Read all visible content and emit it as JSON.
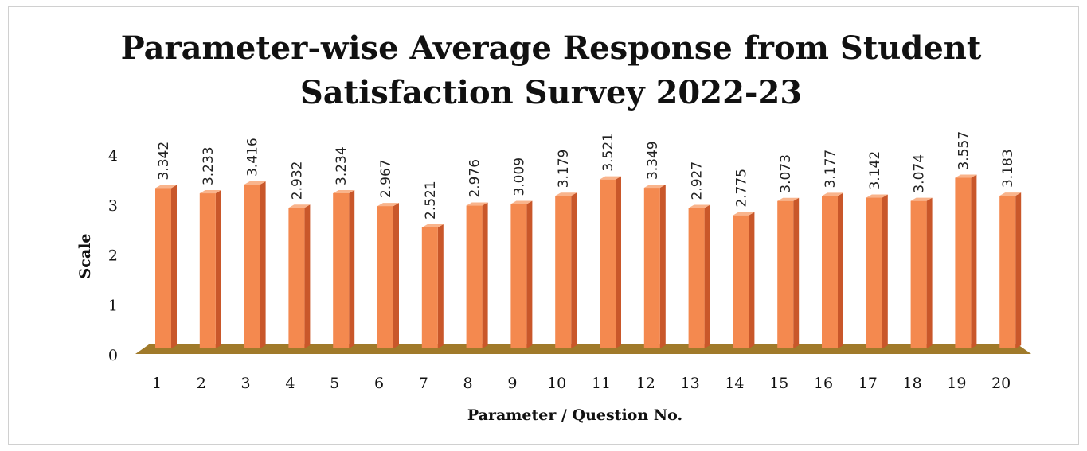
{
  "chart_data": {
    "type": "bar",
    "title_lines": [
      "Parameter-wise Average Response from Student",
      "Satisfaction Survey 2022-23"
    ],
    "xlabel": "Parameter / Question No.",
    "ylabel": "Scale",
    "categories": [
      "1",
      "2",
      "3",
      "4",
      "5",
      "6",
      "7",
      "8",
      "9",
      "10",
      "11",
      "12",
      "13",
      "14",
      "15",
      "16",
      "17",
      "18",
      "19",
      "20"
    ],
    "values": [
      3.342,
      3.233,
      3.416,
      2.932,
      3.234,
      2.967,
      2.521,
      2.976,
      3.009,
      3.179,
      3.521,
      3.349,
      2.927,
      2.775,
      3.073,
      3.177,
      3.142,
      3.074,
      3.557,
      3.183
    ],
    "value_labels": [
      "3.342",
      "3.233",
      "3.416",
      "2.932",
      "3.234",
      "2.967",
      "2.521",
      "2.976",
      "3.009",
      "3.179",
      "3.521",
      "3.349",
      "2.927",
      "2.775",
      "3.073",
      "3.177",
      "3.142",
      "3.074",
      "3.557",
      "3.183"
    ],
    "yticks": [
      "0",
      "1",
      "2",
      "3",
      "4"
    ],
    "ylim": [
      0,
      4
    ],
    "grid": false,
    "legend": "none",
    "colors": {
      "bar_front": "#f4894f",
      "bar_side": "#c9572a",
      "bar_top": "#f9b48c",
      "floor": "#a07a2a"
    }
  }
}
